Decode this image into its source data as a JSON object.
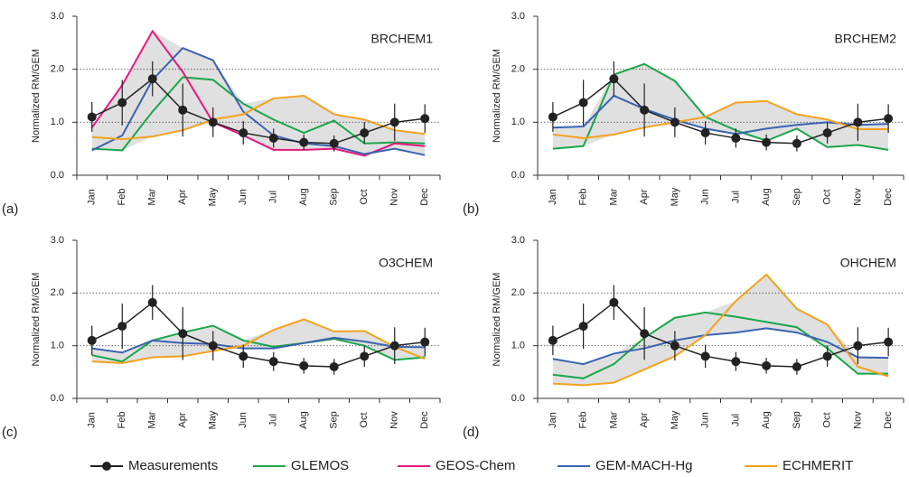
{
  "chart_data": [
    {
      "type": "line",
      "title": "BRCHEM1",
      "label": "(a)",
      "y_label": "Normalized RM/GEM",
      "categories": [
        "Jan",
        "Feb",
        "Mar",
        "Apr",
        "May",
        "Jun",
        "Jul",
        "Aug",
        "Sep",
        "Oct",
        "Nov",
        "Dec"
      ],
      "ylim": [
        0,
        3
      ],
      "yticks": [
        {
          "value": 0,
          "label": "0.0"
        },
        {
          "value": 1,
          "label": "1.0"
        },
        {
          "value": 2,
          "label": "2.0"
        },
        {
          "value": 3,
          "label": "3.0"
        }
      ],
      "grid": true,
      "envelope": true,
      "series": [
        {
          "name": "Measurements",
          "color": "#222222",
          "values": [
            1.1,
            1.37,
            1.82,
            1.23,
            1.0,
            0.8,
            0.7,
            0.62,
            0.6,
            0.8,
            1.0,
            1.07
          ],
          "errors": [
            0.28,
            0.43,
            0.33,
            0.5,
            0.28,
            0.22,
            0.18,
            0.15,
            0.15,
            0.2,
            0.35,
            0.27
          ]
        },
        {
          "name": "GLEMOS",
          "color": "#1aa64a",
          "values": [
            0.5,
            0.47,
            1.2,
            1.85,
            1.8,
            1.35,
            1.05,
            0.8,
            1.03,
            0.6,
            0.62,
            0.6
          ]
        },
        {
          "name": "GEOS-Chem",
          "color": "#e5197e",
          "values": [
            0.9,
            1.7,
            2.72,
            1.95,
            1.0,
            0.75,
            0.48,
            0.48,
            0.5,
            0.37,
            0.6,
            0.55
          ]
        },
        {
          "name": "GEM-MACH-Hg",
          "color": "#3a63b0",
          "values": [
            0.47,
            0.75,
            1.8,
            2.4,
            2.17,
            1.2,
            0.75,
            0.6,
            0.55,
            0.4,
            0.5,
            0.38
          ]
        },
        {
          "name": "ECHMERIT",
          "color": "#f4a21e",
          "values": [
            0.72,
            0.68,
            0.73,
            0.85,
            1.05,
            1.15,
            1.45,
            1.5,
            1.15,
            1.05,
            0.85,
            0.78
          ]
        }
      ]
    },
    {
      "type": "line",
      "title": "BRCHEM2",
      "label": "(b)",
      "y_label": "Normalized RM/GEM",
      "categories": [
        "Jan",
        "Feb",
        "Mar",
        "Apr",
        "May",
        "Jun",
        "Jul",
        "Aug",
        "Sep",
        "Oct",
        "Nov",
        "Dec"
      ],
      "ylim": [
        0,
        3
      ],
      "yticks": [
        {
          "value": 0,
          "label": "0.0"
        },
        {
          "value": 1,
          "label": "1.0"
        },
        {
          "value": 2,
          "label": "2.0"
        },
        {
          "value": 3,
          "label": "3.0"
        }
      ],
      "grid": true,
      "envelope": true,
      "series": [
        {
          "name": "Measurements",
          "color": "#222222",
          "values": [
            1.1,
            1.37,
            1.82,
            1.23,
            1.0,
            0.8,
            0.7,
            0.62,
            0.6,
            0.8,
            1.0,
            1.07
          ],
          "errors": [
            0.28,
            0.43,
            0.33,
            0.5,
            0.28,
            0.22,
            0.18,
            0.15,
            0.15,
            0.2,
            0.35,
            0.27
          ]
        },
        {
          "name": "GLEMOS",
          "color": "#1aa64a",
          "values": [
            0.5,
            0.55,
            1.9,
            2.1,
            1.78,
            1.1,
            0.85,
            0.65,
            0.88,
            0.53,
            0.57,
            0.48
          ]
        },
        {
          "name": "GEM-MACH-Hg",
          "color": "#3a63b0",
          "values": [
            0.9,
            0.92,
            1.5,
            1.25,
            1.05,
            0.88,
            0.78,
            0.88,
            0.95,
            1.0,
            0.95,
            0.97
          ]
        },
        {
          "name": "ECHMERIT",
          "color": "#f4a21e",
          "values": [
            0.77,
            0.7,
            0.77,
            0.9,
            1.0,
            1.1,
            1.37,
            1.4,
            1.15,
            1.05,
            0.87,
            0.87
          ]
        }
      ]
    },
    {
      "type": "line",
      "title": "O3CHEM",
      "label": "(c)",
      "y_label": "Normalized RM/GEM",
      "categories": [
        "Jan",
        "Feb",
        "Mar",
        "Apr",
        "May",
        "Jun",
        "Jul",
        "Aug",
        "Sep",
        "Oct",
        "Nov",
        "Dec"
      ],
      "ylim": [
        0,
        3
      ],
      "yticks": [
        {
          "value": 0,
          "label": "0.0"
        },
        {
          "value": 1,
          "label": "1.0"
        },
        {
          "value": 2,
          "label": "2.0"
        },
        {
          "value": 3,
          "label": "3.0"
        }
      ],
      "grid": true,
      "envelope": true,
      "series": [
        {
          "name": "Measurements",
          "color": "#222222",
          "values": [
            1.1,
            1.37,
            1.82,
            1.23,
            1.0,
            0.8,
            0.7,
            0.62,
            0.6,
            0.8,
            1.0,
            1.07
          ],
          "errors": [
            0.28,
            0.43,
            0.33,
            0.5,
            0.28,
            0.22,
            0.18,
            0.15,
            0.15,
            0.2,
            0.35,
            0.27
          ]
        },
        {
          "name": "GLEMOS",
          "color": "#1aa64a",
          "values": [
            0.82,
            0.7,
            1.1,
            1.25,
            1.38,
            1.1,
            0.98,
            1.05,
            1.13,
            1.0,
            0.73,
            0.78
          ]
        },
        {
          "name": "GEM-MACH-Hg",
          "color": "#3a63b0",
          "values": [
            0.95,
            0.87,
            1.1,
            1.05,
            1.03,
            0.95,
            0.95,
            1.05,
            1.15,
            1.08,
            0.98,
            0.97
          ]
        },
        {
          "name": "ECHMERIT",
          "color": "#f4a21e",
          "values": [
            0.7,
            0.67,
            0.78,
            0.8,
            0.9,
            1.0,
            1.3,
            1.5,
            1.27,
            1.28,
            0.98,
            0.75
          ]
        }
      ]
    },
    {
      "type": "line",
      "title": "OHCHEM",
      "label": "(d)",
      "y_label": "Normalized RM/GEM",
      "categories": [
        "Jan",
        "Feb",
        "Mar",
        "Apr",
        "May",
        "Jun",
        "Jul",
        "Aug",
        "Sep",
        "Oct",
        "Nov",
        "Dec"
      ],
      "ylim": [
        0,
        3
      ],
      "yticks": [
        {
          "value": 0,
          "label": "0.0"
        },
        {
          "value": 1,
          "label": "1.0"
        },
        {
          "value": 2,
          "label": "2.0"
        },
        {
          "value": 3,
          "label": "3.0"
        }
      ],
      "grid": true,
      "envelope": true,
      "series": [
        {
          "name": "Measurements",
          "color": "#222222",
          "values": [
            1.1,
            1.37,
            1.82,
            1.23,
            1.0,
            0.8,
            0.7,
            0.62,
            0.6,
            0.8,
            1.0,
            1.07
          ],
          "errors": [
            0.28,
            0.43,
            0.33,
            0.5,
            0.28,
            0.22,
            0.18,
            0.15,
            0.15,
            0.2,
            0.35,
            0.27
          ]
        },
        {
          "name": "GLEMOS",
          "color": "#1aa64a",
          "values": [
            0.45,
            0.38,
            0.65,
            1.15,
            1.53,
            1.63,
            1.55,
            1.45,
            1.35,
            0.95,
            0.47,
            0.47
          ]
        },
        {
          "name": "GEM-MACH-Hg",
          "color": "#3a63b0",
          "values": [
            0.75,
            0.65,
            0.85,
            0.95,
            1.1,
            1.2,
            1.25,
            1.33,
            1.25,
            1.07,
            0.78,
            0.77
          ]
        },
        {
          "name": "ECHMERIT",
          "color": "#f4a21e",
          "values": [
            0.28,
            0.25,
            0.3,
            0.55,
            0.8,
            1.2,
            1.85,
            2.35,
            1.7,
            1.4,
            0.6,
            0.42
          ]
        }
      ]
    }
  ]
}
